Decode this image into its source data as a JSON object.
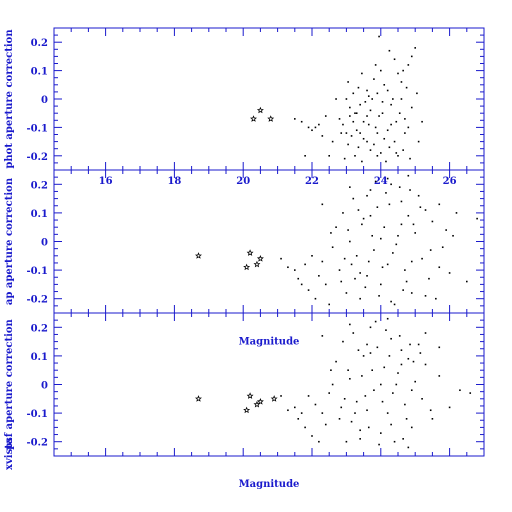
{
  "chart_data": {
    "type": "scatter",
    "colors": {
      "axis": "#1a1acc",
      "points": "#000000"
    },
    "panels": [
      {
        "ylabel": "phot aperture correction",
        "xlim": [
          14.5,
          27
        ],
        "ylim": [
          -0.25,
          0.25
        ],
        "yticks": [
          -0.2,
          -0.1,
          0,
          0.1,
          0.2
        ],
        "xticks": [
          16,
          18,
          20,
          22,
          24,
          26
        ],
        "show_xtick_labels": true,
        "points": [
          [
            20.3,
            -0.07
          ],
          [
            20.5,
            -0.04
          ],
          [
            20.8,
            -0.07
          ],
          [
            21.5,
            -0.07
          ],
          [
            21.7,
            -0.08
          ],
          [
            21.9,
            -0.1
          ],
          [
            22.0,
            -0.11
          ],
          [
            22.1,
            -0.1
          ],
          [
            22.2,
            -0.09
          ],
          [
            22.3,
            -0.13
          ],
          [
            22.5,
            -0.2
          ],
          [
            22.7,
            0.0
          ],
          [
            22.8,
            -0.07
          ],
          [
            22.9,
            -0.09
          ],
          [
            23.0,
            0.0
          ],
          [
            23.1,
            -0.03
          ],
          [
            23.2,
            0.02
          ],
          [
            23.3,
            -0.05
          ],
          [
            23.35,
            0.04
          ],
          [
            23.4,
            -0.12
          ],
          [
            23.5,
            -0.08
          ],
          [
            23.6,
            -0.15
          ],
          [
            23.65,
            0.01
          ],
          [
            23.7,
            -0.18
          ],
          [
            23.8,
            0.07
          ],
          [
            23.85,
            -0.1
          ],
          [
            23.9,
            -0.2
          ],
          [
            24.0,
            0.1
          ],
          [
            24.05,
            -0.05
          ],
          [
            24.1,
            -0.14
          ],
          [
            24.2,
            0.03
          ],
          [
            24.3,
            -0.09
          ],
          [
            24.4,
            0.14
          ],
          [
            24.5,
            -0.2
          ],
          [
            24.6,
            0.06
          ],
          [
            24.7,
            -0.12
          ],
          [
            24.8,
            0.12
          ],
          [
            24.9,
            -0.03
          ],
          [
            25.0,
            0.18
          ],
          [
            25.1,
            -0.15
          ],
          [
            23.05,
            -0.16
          ],
          [
            23.25,
            -0.2
          ],
          [
            23.45,
            -0.22
          ],
          [
            23.55,
            -0.01
          ],
          [
            23.75,
            0.0
          ],
          [
            23.95,
            -0.06
          ],
          [
            24.15,
            -0.22
          ],
          [
            24.35,
            0.0
          ],
          [
            24.55,
            -0.05
          ],
          [
            24.75,
            0.04
          ],
          [
            22.6,
            -0.15
          ],
          [
            22.95,
            -0.21
          ],
          [
            23.15,
            -0.13
          ],
          [
            23.35,
            -0.17
          ],
          [
            23.6,
            -0.06
          ],
          [
            23.9,
            -0.12
          ],
          [
            24.25,
            -0.17
          ],
          [
            24.45,
            -0.08
          ],
          [
            24.65,
            -0.18
          ],
          [
            24.85,
            -0.21
          ],
          [
            23.1,
            -0.06
          ],
          [
            23.3,
            -0.11
          ],
          [
            23.5,
            -0.14
          ],
          [
            23.7,
            -0.04
          ],
          [
            23.9,
            0.02
          ],
          [
            24.1,
            0.05
          ],
          [
            24.3,
            -0.02
          ],
          [
            24.5,
            0.09
          ],
          [
            24.7,
            -0.07
          ],
          [
            24.9,
            0.15
          ],
          [
            23.0,
            -0.12
          ],
          [
            23.2,
            -0.08
          ],
          [
            23.4,
            -0.02
          ],
          [
            23.6,
            0.03
          ],
          [
            23.8,
            -0.16
          ],
          [
            24.0,
            -0.19
          ],
          [
            24.2,
            -0.11
          ],
          [
            24.4,
            -0.15
          ],
          [
            24.6,
            0.0
          ],
          [
            24.8,
            -0.1
          ],
          [
            22.4,
            -0.06
          ],
          [
            22.85,
            -0.12
          ],
          [
            23.05,
            0.06
          ],
          [
            23.25,
            -0.05
          ],
          [
            23.45,
            0.09
          ],
          [
            23.65,
            -0.09
          ],
          [
            23.85,
            0.12
          ],
          [
            24.05,
            -0.01
          ],
          [
            24.25,
            0.17
          ],
          [
            24.45,
            -0.19
          ],
          [
            21.8,
            -0.2
          ],
          [
            23.95,
            0.22
          ],
          [
            24.65,
            0.1
          ],
          [
            25.05,
            0.02
          ],
          [
            25.2,
            -0.08
          ]
        ]
      },
      {
        "ylabel": "ap aperture correction",
        "xlim": [
          14.5,
          27
        ],
        "ylim": [
          -0.25,
          0.25
        ],
        "yticks": [
          -0.2,
          -0.1,
          0,
          0.1,
          0.2
        ],
        "xticks": [
          16,
          18,
          20,
          22,
          24,
          26
        ],
        "show_xtick_labels": false,
        "points": [
          [
            18.7,
            -0.05
          ],
          [
            20.1,
            -0.09
          ],
          [
            20.2,
            -0.04
          ],
          [
            20.4,
            -0.08
          ],
          [
            20.5,
            -0.06
          ],
          [
            21.1,
            -0.06
          ],
          [
            21.3,
            -0.09
          ],
          [
            21.5,
            -0.1
          ],
          [
            21.6,
            -0.13
          ],
          [
            21.7,
            -0.15
          ],
          [
            21.8,
            -0.08
          ],
          [
            21.9,
            -0.17
          ],
          [
            22.0,
            -0.05
          ],
          [
            22.1,
            -0.2
          ],
          [
            22.2,
            -0.12
          ],
          [
            22.3,
            -0.07
          ],
          [
            22.4,
            -0.15
          ],
          [
            22.5,
            -0.22
          ],
          [
            22.6,
            -0.02
          ],
          [
            22.7,
            0.05
          ],
          [
            22.8,
            -0.1
          ],
          [
            22.9,
            0.1
          ],
          [
            23.0,
            -0.18
          ],
          [
            23.1,
            0.0
          ],
          [
            23.2,
            0.15
          ],
          [
            23.3,
            -0.05
          ],
          [
            23.4,
            -0.2
          ],
          [
            23.5,
            0.08
          ],
          [
            23.6,
            -0.12
          ],
          [
            23.7,
            0.18
          ],
          [
            23.8,
            -0.03
          ],
          [
            23.9,
            0.12
          ],
          [
            24.0,
            -0.15
          ],
          [
            24.1,
            0.05
          ],
          [
            24.2,
            -0.08
          ],
          [
            24.3,
            0.2
          ],
          [
            24.4,
            -0.22
          ],
          [
            24.5,
            0.02
          ],
          [
            24.6,
            0.14
          ],
          [
            24.7,
            -0.1
          ],
          [
            24.8,
            0.09
          ],
          [
            24.9,
            -0.18
          ],
          [
            25.0,
            0.03
          ],
          [
            25.1,
            0.16
          ],
          [
            25.2,
            -0.06
          ],
          [
            25.3,
            0.11
          ],
          [
            25.4,
            -0.13
          ],
          [
            25.5,
            0.07
          ],
          [
            25.6,
            -0.2
          ],
          [
            25.7,
            0.13
          ],
          [
            25.8,
            -0.02
          ],
          [
            25.9,
            0.04
          ],
          [
            26.0,
            -0.11
          ],
          [
            26.2,
            0.1
          ],
          [
            26.5,
            -0.14
          ],
          [
            23.15,
            -0.08
          ],
          [
            23.35,
            0.11
          ],
          [
            23.55,
            -0.16
          ],
          [
            23.75,
            0.02
          ],
          [
            23.95,
            -0.19
          ],
          [
            24.15,
            0.17
          ],
          [
            24.35,
            -0.04
          ],
          [
            24.55,
            0.19
          ],
          [
            24.75,
            -0.14
          ],
          [
            24.95,
            0.06
          ],
          [
            23.05,
            0.04
          ],
          [
            23.25,
            -0.13
          ],
          [
            23.45,
            0.06
          ],
          [
            23.65,
            -0.07
          ],
          [
            23.85,
            0.21
          ],
          [
            24.05,
            -0.09
          ],
          [
            24.25,
            0.13
          ],
          [
            24.45,
            -0.01
          ],
          [
            24.65,
            -0.17
          ],
          [
            24.85,
            0.18
          ],
          [
            22.85,
            -0.14
          ],
          [
            23.1,
            0.19
          ],
          [
            23.4,
            -0.11
          ],
          [
            23.7,
            0.09
          ],
          [
            24.0,
            0.01
          ],
          [
            24.3,
            -0.21
          ],
          [
            24.6,
            0.06
          ],
          [
            24.9,
            -0.07
          ],
          [
            25.15,
            0.12
          ],
          [
            25.45,
            -0.03
          ],
          [
            22.3,
            0.13
          ],
          [
            22.55,
            0.03
          ],
          [
            22.95,
            -0.06
          ],
          [
            23.6,
            0.16
          ],
          [
            24.2,
            0.22
          ],
          [
            24.8,
            0.23
          ],
          [
            25.3,
            -0.19
          ],
          [
            25.7,
            -0.09
          ],
          [
            26.1,
            0.02
          ],
          [
            26.8,
            0.08
          ]
        ]
      },
      {
        "ylabel": "psf aperture correction",
        "xlim": [
          14.5,
          27
        ],
        "ylim": [
          -0.25,
          0.25
        ],
        "yticks": [
          -0.2,
          -0.1,
          0,
          0.1,
          0.2
        ],
        "xticks": [
          16,
          18,
          20,
          22,
          24,
          26
        ],
        "show_xtick_labels": false,
        "annotation": "Magnitude",
        "points": [
          [
            18.7,
            -0.05
          ],
          [
            20.1,
            -0.09
          ],
          [
            20.2,
            -0.04
          ],
          [
            20.4,
            -0.07
          ],
          [
            20.5,
            -0.06
          ],
          [
            20.9,
            -0.05
          ],
          [
            21.1,
            -0.04
          ],
          [
            21.3,
            -0.09
          ],
          [
            21.5,
            -0.08
          ],
          [
            21.6,
            -0.12
          ],
          [
            21.7,
            -0.1
          ],
          [
            21.8,
            -0.15
          ],
          [
            21.9,
            -0.04
          ],
          [
            22.0,
            -0.18
          ],
          [
            22.1,
            -0.07
          ],
          [
            22.2,
            -0.2
          ],
          [
            22.3,
            -0.1
          ],
          [
            22.4,
            -0.14
          ],
          [
            22.5,
            -0.03
          ],
          [
            22.6,
            0.0
          ],
          [
            22.7,
            0.08
          ],
          [
            22.8,
            -0.12
          ],
          [
            22.9,
            0.15
          ],
          [
            23.0,
            -0.2
          ],
          [
            23.1,
            0.02
          ],
          [
            23.2,
            0.18
          ],
          [
            23.3,
            -0.06
          ],
          [
            23.4,
            -0.16
          ],
          [
            23.5,
            0.1
          ],
          [
            23.6,
            -0.09
          ],
          [
            23.7,
            0.2
          ],
          [
            23.8,
            -0.02
          ],
          [
            23.9,
            0.13
          ],
          [
            24.0,
            -0.17
          ],
          [
            24.1,
            0.06
          ],
          [
            24.2,
            -0.1
          ],
          [
            24.3,
            0.16
          ],
          [
            24.4,
            -0.2
          ],
          [
            24.5,
            0.04
          ],
          [
            24.6,
            0.12
          ],
          [
            24.7,
            -0.07
          ],
          [
            24.8,
            0.09
          ],
          [
            24.9,
            -0.15
          ],
          [
            25.0,
            0.01
          ],
          [
            25.1,
            0.14
          ],
          [
            25.2,
            -0.05
          ],
          [
            25.3,
            0.07
          ],
          [
            25.5,
            -0.12
          ],
          [
            25.7,
            0.03
          ],
          [
            26.0,
            -0.08
          ],
          [
            23.15,
            -0.13
          ],
          [
            23.35,
            0.12
          ],
          [
            23.55,
            -0.04
          ],
          [
            23.75,
            0.05
          ],
          [
            23.95,
            -0.21
          ],
          [
            24.15,
            0.19
          ],
          [
            24.35,
            -0.03
          ],
          [
            24.55,
            0.17
          ],
          [
            24.75,
            -0.12
          ],
          [
            24.95,
            0.08
          ],
          [
            23.05,
            0.05
          ],
          [
            23.25,
            -0.1
          ],
          [
            23.45,
            0.03
          ],
          [
            23.65,
            -0.15
          ],
          [
            23.85,
            0.22
          ],
          [
            24.05,
            -0.06
          ],
          [
            24.25,
            0.1
          ],
          [
            24.45,
            0.0
          ],
          [
            24.65,
            -0.19
          ],
          [
            24.85,
            0.14
          ],
          [
            22.85,
            -0.08
          ],
          [
            23.1,
            0.21
          ],
          [
            23.4,
            -0.19
          ],
          [
            23.7,
            0.11
          ],
          [
            24.0,
            0.0
          ],
          [
            24.3,
            -0.14
          ],
          [
            24.6,
            0.07
          ],
          [
            24.9,
            -0.02
          ],
          [
            25.15,
            0.11
          ],
          [
            25.45,
            -0.09
          ],
          [
            22.3,
            0.17
          ],
          [
            22.55,
            0.05
          ],
          [
            22.95,
            -0.05
          ],
          [
            23.6,
            0.14
          ],
          [
            24.2,
            0.23
          ],
          [
            24.8,
            -0.22
          ],
          [
            25.3,
            0.18
          ],
          [
            25.7,
            0.13
          ],
          [
            26.3,
            -0.02
          ],
          [
            26.6,
            -0.03
          ]
        ]
      }
    ],
    "xlabel": "Magnitude",
    "left_label_prefix": "xvista"
  }
}
